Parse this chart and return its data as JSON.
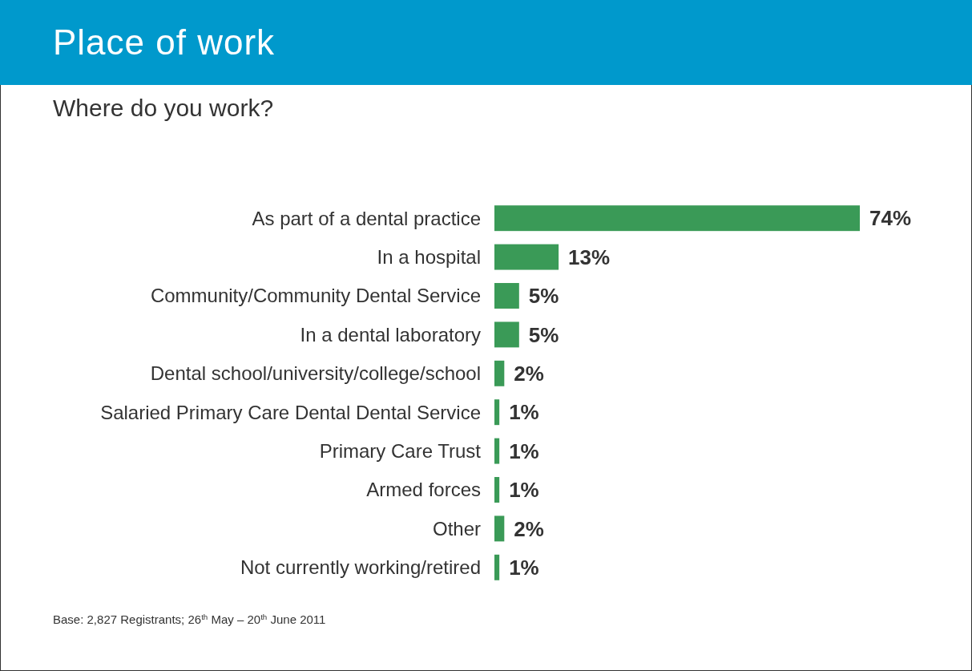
{
  "chart_data": {
    "type": "bar",
    "orientation": "horizontal",
    "title": "Place of work",
    "subtitle": "Where do you work?",
    "categories": [
      "As part of a dental practice",
      "In a hospital",
      "Community/Community Dental Service",
      "In a dental laboratory",
      "Dental school/university/college/school",
      "Salaried Primary Care Dental Dental Service",
      "Primary Care Trust",
      "Armed forces",
      "Other",
      "Not currently working/retired"
    ],
    "values": [
      74,
      13,
      5,
      5,
      2,
      1,
      1,
      1,
      2,
      1
    ],
    "value_labels": [
      "74%",
      "13%",
      "5%",
      "5%",
      "2%",
      "1%",
      "1%",
      "1%",
      "2%",
      "1%"
    ],
    "color": "#3a9a57",
    "annotations": [
      "Base: 2,827 Registrants; 26$^{th}$ May – 20$^{th}$ June 2011"
    ]
  }
}
